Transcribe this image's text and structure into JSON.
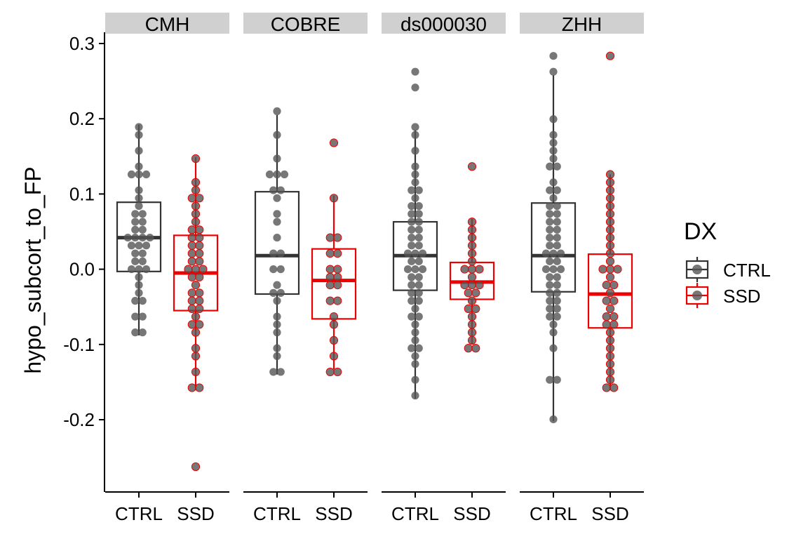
{
  "chart_data": {
    "type": "box",
    "facets": [
      "CMH",
      "COBRE",
      "ds000030",
      "ZHH"
    ],
    "categories": [
      "CTRL",
      "SSD"
    ],
    "ylabel": "hypo_subcort_to_FP",
    "xlabel": "",
    "ylim": [
      -0.3,
      0.31
    ],
    "yticks": [
      {
        "v": 0.3,
        "label": "0.3"
      },
      {
        "v": 0.2,
        "label": "0.2"
      },
      {
        "v": 0.1,
        "label": "0.1"
      },
      {
        "v": 0.0,
        "label": "0.0"
      },
      {
        "v": -0.1,
        "label": "-0.1"
      },
      {
        "v": -0.2,
        "label": "-0.2"
      }
    ],
    "grid": false,
    "legend": {
      "title": "DX",
      "position": "right",
      "entries": [
        {
          "name": "CTRL",
          "color": "#333333"
        },
        {
          "name": "SSD",
          "color": "#ee0000"
        }
      ]
    },
    "point_color": "#555555",
    "panels": [
      {
        "facet": "CMH",
        "groups": [
          {
            "dx": "CTRL",
            "stats": {
              "min": -0.088,
              "q1": -0.003,
              "median": 0.042,
              "q3": 0.089,
              "max": 0.192
            },
            "points": [
              0.192,
              0.183,
              0.153,
              0.14,
              0.13,
              0.13,
              0.125,
              0.1,
              0.095,
              0.088,
              0.075,
              0.073,
              0.063,
              0.06,
              0.055,
              0.05,
              0.045,
              0.045,
              0.042,
              0.04,
              0.035,
              0.035,
              0.03,
              0.025,
              0.02,
              0.015,
              0.01,
              0.005,
              0.0,
              -0.005,
              -0.01,
              -0.02,
              -0.03,
              -0.037,
              -0.042,
              -0.058,
              -0.065,
              -0.088,
              -0.088
            ]
          },
          {
            "dx": "SSD",
            "stats": {
              "min": -0.16,
              "q1": -0.055,
              "median": -0.005,
              "q3": 0.045,
              "max": 0.149
            },
            "points": [
              0.149,
              0.118,
              0.105,
              0.095,
              0.09,
              0.08,
              0.072,
              0.063,
              0.055,
              0.05,
              0.045,
              0.04,
              0.035,
              0.03,
              0.025,
              0.02,
              0.015,
              0.01,
              0.005,
              0.0,
              -0.005,
              -0.01,
              -0.015,
              -0.02,
              -0.03,
              -0.035,
              -0.04,
              -0.045,
              -0.05,
              -0.055,
              -0.06,
              -0.07,
              -0.075,
              -0.085,
              -0.1,
              -0.115,
              -0.14,
              -0.157,
              -0.16,
              -0.265
            ]
          }
        ]
      },
      {
        "facet": "COBRE",
        "groups": [
          {
            "dx": "CTRL",
            "stats": {
              "min": -0.14,
              "q1": -0.033,
              "median": 0.018,
              "q3": 0.103,
              "max": 0.205
            },
            "points": [
              0.205,
              0.182,
              0.15,
              0.13,
              0.125,
              0.125,
              0.11,
              0.1,
              0.09,
              0.07,
              0.06,
              0.045,
              0.02,
              0.018,
              0.0,
              -0.005,
              -0.02,
              -0.033,
              -0.035,
              -0.045,
              -0.06,
              -0.075,
              -0.085,
              -0.1,
              -0.12,
              -0.14,
              -0.14
            ]
          },
          {
            "dx": "SSD",
            "stats": {
              "min": -0.133,
              "q1": -0.066,
              "median": -0.015,
              "q3": 0.027,
              "max": 0.098
            },
            "points": [
              0.168,
              0.098,
              0.045,
              0.04,
              0.025,
              0.02,
              0.005,
              -0.005,
              -0.015,
              -0.015,
              -0.02,
              -0.025,
              -0.04,
              -0.045,
              -0.06,
              -0.076,
              -0.09,
              -0.115,
              -0.133,
              -0.133
            ]
          }
        ]
      },
      {
        "facet": "ds000030",
        "groups": [
          {
            "dx": "CTRL",
            "stats": {
              "min": -0.172,
              "q1": -0.028,
              "median": 0.018,
              "q3": 0.063,
              "max": 0.185
            },
            "points": [
              0.262,
              0.238,
              0.185,
              0.18,
              0.16,
              0.14,
              0.125,
              0.118,
              0.11,
              0.1,
              0.095,
              0.088,
              0.08,
              0.075,
              0.07,
              0.063,
              0.058,
              0.053,
              0.048,
              0.043,
              0.04,
              0.035,
              0.03,
              0.025,
              0.02,
              0.018,
              0.015,
              0.01,
              0.005,
              0.0,
              -0.005,
              -0.01,
              -0.015,
              -0.02,
              -0.025,
              -0.03,
              -0.035,
              -0.04,
              -0.045,
              -0.052,
              -0.06,
              -0.066,
              -0.075,
              -0.085,
              -0.092,
              -0.1,
              -0.11,
              -0.118,
              -0.13,
              -0.152,
              -0.172
            ]
          },
          {
            "dx": "SSD",
            "stats": {
              "min": -0.1,
              "q1": -0.04,
              "median": -0.017,
              "q3": 0.009,
              "max": 0.067
            },
            "points": [
              0.138,
              0.067,
              0.055,
              0.043,
              0.03,
              0.02,
              0.012,
              0.005,
              0.0,
              -0.005,
              -0.01,
              -0.017,
              -0.02,
              -0.025,
              -0.03,
              -0.035,
              -0.04,
              -0.048,
              -0.055,
              -0.065,
              -0.072,
              -0.08,
              -0.09,
              -0.1,
              -0.1
            ]
          }
        ]
      },
      {
        "facet": "ZHH",
        "groups": [
          {
            "dx": "CTRL",
            "stats": {
              "min": -0.202,
              "q1": -0.03,
              "median": 0.018,
              "q3": 0.088,
              "max": 0.258
            },
            "points": [
              0.279,
              0.258,
              0.196,
              0.183,
              0.168,
              0.16,
              0.15,
              0.14,
              0.133,
              0.12,
              0.11,
              0.1,
              0.095,
              0.088,
              0.082,
              0.076,
              0.07,
              0.065,
              0.06,
              0.055,
              0.05,
              0.045,
              0.04,
              0.035,
              0.03,
              0.025,
              0.02,
              0.018,
              0.015,
              0.01,
              0.005,
              0.0,
              -0.005,
              -0.01,
              -0.015,
              -0.02,
              -0.025,
              -0.03,
              -0.035,
              -0.04,
              -0.045,
              -0.05,
              -0.055,
              -0.06,
              -0.068,
              -0.075,
              -0.085,
              -0.1,
              -0.152,
              -0.152,
              -0.202
            ]
          },
          {
            "dx": "SSD",
            "stats": {
              "min": -0.16,
              "q1": -0.078,
              "median": -0.033,
              "q3": 0.02,
              "max": 0.126
            },
            "points": [
              0.28,
              0.126,
              0.115,
              0.105,
              0.092,
              0.08,
              0.07,
              0.06,
              0.05,
              0.04,
              0.03,
              0.02,
              0.012,
              0.005,
              0.0,
              -0.005,
              -0.012,
              -0.02,
              -0.025,
              -0.033,
              -0.04,
              -0.045,
              -0.05,
              -0.058,
              -0.065,
              -0.072,
              -0.078,
              -0.085,
              -0.095,
              -0.11,
              -0.112,
              -0.125,
              -0.138,
              -0.15,
              -0.16,
              -0.16
            ]
          }
        ]
      }
    ]
  }
}
